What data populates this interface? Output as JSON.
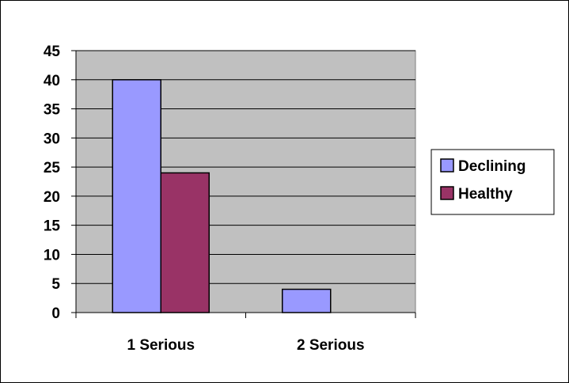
{
  "chart_data": {
    "type": "bar",
    "title": "",
    "xlabel": "",
    "ylabel": "",
    "categories": [
      "1 Serious",
      "2 Serious"
    ],
    "series": [
      {
        "name": "Declining",
        "values": [
          40,
          4
        ],
        "color": "#9999ff"
      },
      {
        "name": "Healthy",
        "values": [
          24,
          0
        ],
        "color": "#993366"
      }
    ],
    "ylim": [
      0,
      45
    ],
    "yticks": [
      0,
      5,
      10,
      15,
      20,
      25,
      30,
      35,
      40,
      45
    ],
    "grid": true,
    "plot_background": "#c0c0c0",
    "legend": "right"
  }
}
